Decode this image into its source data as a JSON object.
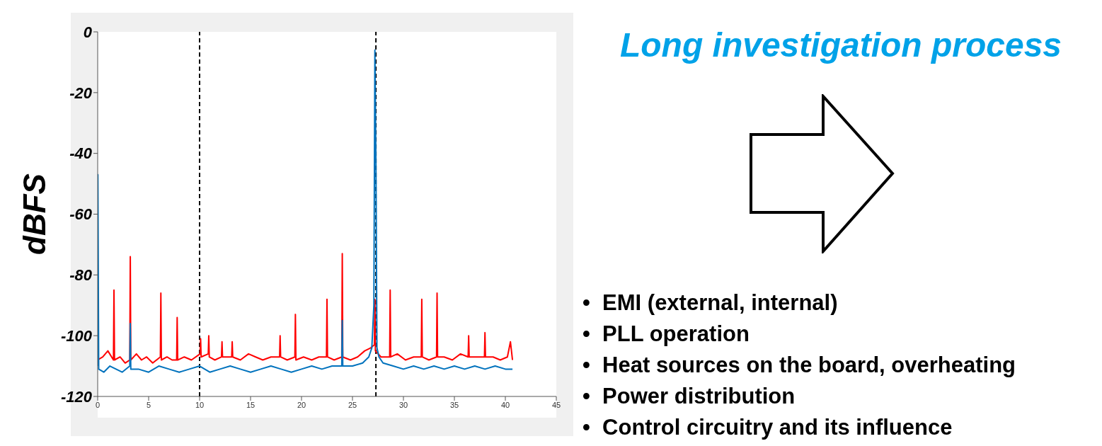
{
  "chart_data": {
    "type": "line",
    "title": "Long investigation process",
    "ylabel": "dBFS",
    "xlim": [
      0,
      45
    ],
    "xticks": [
      0,
      5,
      10,
      15,
      20,
      25,
      30,
      35,
      40,
      45
    ],
    "ylim": [
      -120,
      0
    ],
    "yticks": [
      0,
      -20,
      -40,
      -60,
      -80,
      -100,
      -120
    ],
    "grid": false,
    "legend": false,
    "marker": "none",
    "line_style": "solid",
    "series": [
      {
        "color": "#ff0000",
        "x": [
          0,
          0.5,
          1.0,
          1.55,
          1.6,
          1.65,
          2.2,
          2.7,
          3.15,
          3.2,
          3.25,
          3.8,
          4.3,
          4.8,
          5.4,
          6.15,
          6.2,
          6.25,
          6.8,
          7.3,
          7.75,
          7.8,
          7.85,
          8.5,
          9.2,
          10.05,
          10.1,
          10.15,
          10.85,
          10.9,
          10.95,
          11.5,
          12.15,
          12.2,
          12.25,
          13.15,
          13.2,
          13.25,
          14.0,
          14.8,
          15.5,
          16.2,
          17.0,
          17.85,
          17.9,
          17.95,
          18.6,
          19.35,
          19.4,
          19.45,
          20.2,
          21.0,
          21.7,
          22.45,
          22.5,
          22.55,
          23.2,
          23.95,
          24.0,
          24.05,
          24.8,
          25.5,
          26.2,
          26.8,
          27.15,
          27.2,
          27.25,
          27.8,
          28.65,
          28.7,
          28.75,
          29.4,
          30.2,
          31.0,
          31.75,
          31.8,
          31.85,
          32.5,
          33.25,
          33.3,
          33.35,
          34.0,
          34.8,
          35.6,
          36.35,
          36.4,
          36.45,
          37.2,
          37.95,
          38.0,
          38.05,
          38.8,
          39.5,
          40.2,
          40.5,
          40.7
        ],
        "values": [
          -108,
          -107,
          -105,
          -108,
          -85,
          -108,
          -107,
          -109,
          -108,
          -74,
          -108,
          -106,
          -108,
          -107,
          -109,
          -107,
          -86,
          -108,
          -107,
          -108,
          -108,
          -94,
          -108,
          -107,
          -108,
          -106,
          -101,
          -107,
          -106,
          -100,
          -107,
          -108,
          -107,
          -102,
          -107,
          -107,
          -102,
          -107,
          -108,
          -106,
          -107,
          -108,
          -107,
          -107,
          -100,
          -107,
          -108,
          -107,
          -93,
          -108,
          -107,
          -108,
          -107,
          -107,
          -88,
          -107,
          -108,
          -107,
          -73,
          -107,
          -108,
          -107,
          -105,
          -104,
          -103,
          -88,
          -105,
          -107,
          -107,
          -85,
          -107,
          -106,
          -108,
          -107,
          -107,
          -88,
          -107,
          -108,
          -107,
          -86,
          -107,
          -107,
          -108,
          -106,
          -107,
          -100,
          -107,
          -107,
          -107,
          -99,
          -107,
          -107,
          -108,
          -107,
          -102,
          -108
        ]
      },
      {
        "color": "#0072bd",
        "x": [
          0,
          0.02,
          0.1,
          0.6,
          1.2,
          1.8,
          2.4,
          3.15,
          3.2,
          3.25,
          4,
          5,
          6,
          7,
          8,
          9,
          10,
          11,
          12,
          13,
          14,
          15,
          16,
          17,
          18,
          19,
          20,
          21,
          22,
          23,
          23.95,
          24.0,
          24.05,
          25,
          26,
          26.6,
          26.9,
          27.1,
          27.2,
          27.3,
          27.4,
          27.6,
          28,
          29,
          30,
          31,
          32,
          33,
          34,
          35,
          36,
          37,
          38,
          39,
          40,
          40.7
        ],
        "values": [
          -110,
          -47,
          -111,
          -112,
          -110,
          -111,
          -112,
          -110,
          -96,
          -111,
          -111,
          -112,
          -110,
          -111,
          -112,
          -111,
          -110,
          -112,
          -111,
          -110,
          -111,
          -112,
          -111,
          -110,
          -111,
          -112,
          -111,
          -110,
          -111,
          -110,
          -110,
          -95,
          -110,
          -110,
          -109,
          -107,
          -104,
          -90,
          -6,
          -42,
          -104,
          -107,
          -109,
          -110,
          -111,
          -110,
          -111,
          -110,
          -111,
          -110,
          -111,
          -110,
          -111,
          -110,
          -111,
          -111
        ]
      }
    ],
    "ref_lines": [
      {
        "axis": "x",
        "value": 10,
        "color": "#000000",
        "line_style": "dashed"
      },
      {
        "axis": "x",
        "value": 27.3,
        "color": "#000000",
        "line_style": "dashed"
      }
    ],
    "annotations": [
      "•  EMI (external, internal)",
      "•  PLL operation",
      "•  Heat sources on the board, overheating",
      "•  Power distribution",
      "•  Control circuitry and its influence"
    ]
  }
}
